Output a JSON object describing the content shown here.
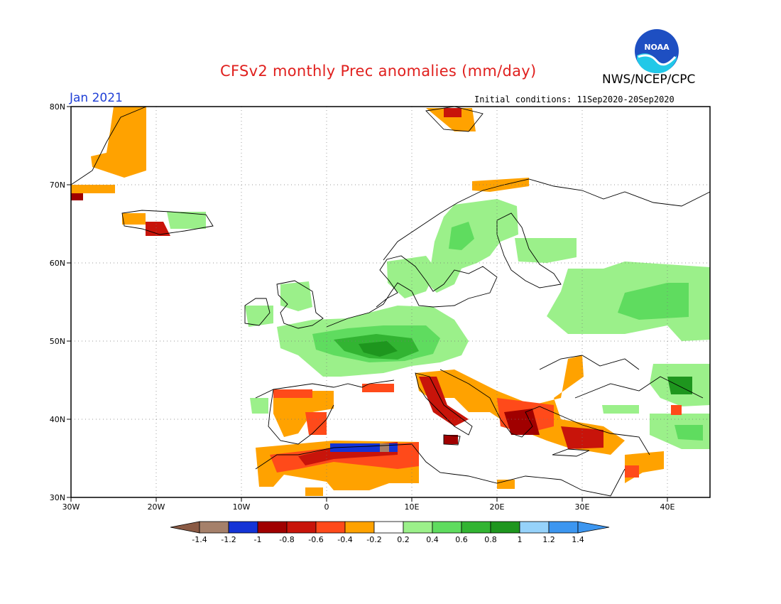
{
  "header": {
    "title": "CFSv2 monthly Prec anomalies (mm/day)",
    "agency": "NWS/NCEP/CPC",
    "month": "Jan 2021",
    "initial_conditions": "Initial conditions: 11Sep2020-20Sep2020"
  },
  "logo": {
    "text": "NOAA",
    "icon": "noaa-logo"
  },
  "axes": {
    "lon_labels": [
      "30W",
      "20W",
      "10W",
      "0",
      "10E",
      "20E",
      "30E",
      "40E"
    ],
    "lat_labels": [
      "80N",
      "70N",
      "60N",
      "50N",
      "40N",
      "30N"
    ]
  },
  "colors": {
    "brown": "#8a5a44",
    "tan": "#a5806a",
    "blue_dark": "#1434d6",
    "red_dark": "#a00000",
    "red": "#c8140a",
    "orange_red": "#ff4a1a",
    "orange": "#ffa200",
    "white": "#ffffff",
    "green_pale": "#9bf08a",
    "green_light": "#5fdc5f",
    "green_mid": "#32b432",
    "green_dark": "#1e961e",
    "blue_light": "#96d2fa",
    "blue_mid": "#3c96f0"
  },
  "colorbar": {
    "labels": [
      "-1.4",
      "-1.2",
      "-1",
      "-0.8",
      "-0.6",
      "-0.4",
      "-0.2",
      "0.2",
      "0.4",
      "0.6",
      "0.8",
      "1",
      "1.2",
      "1.4"
    ]
  }
}
